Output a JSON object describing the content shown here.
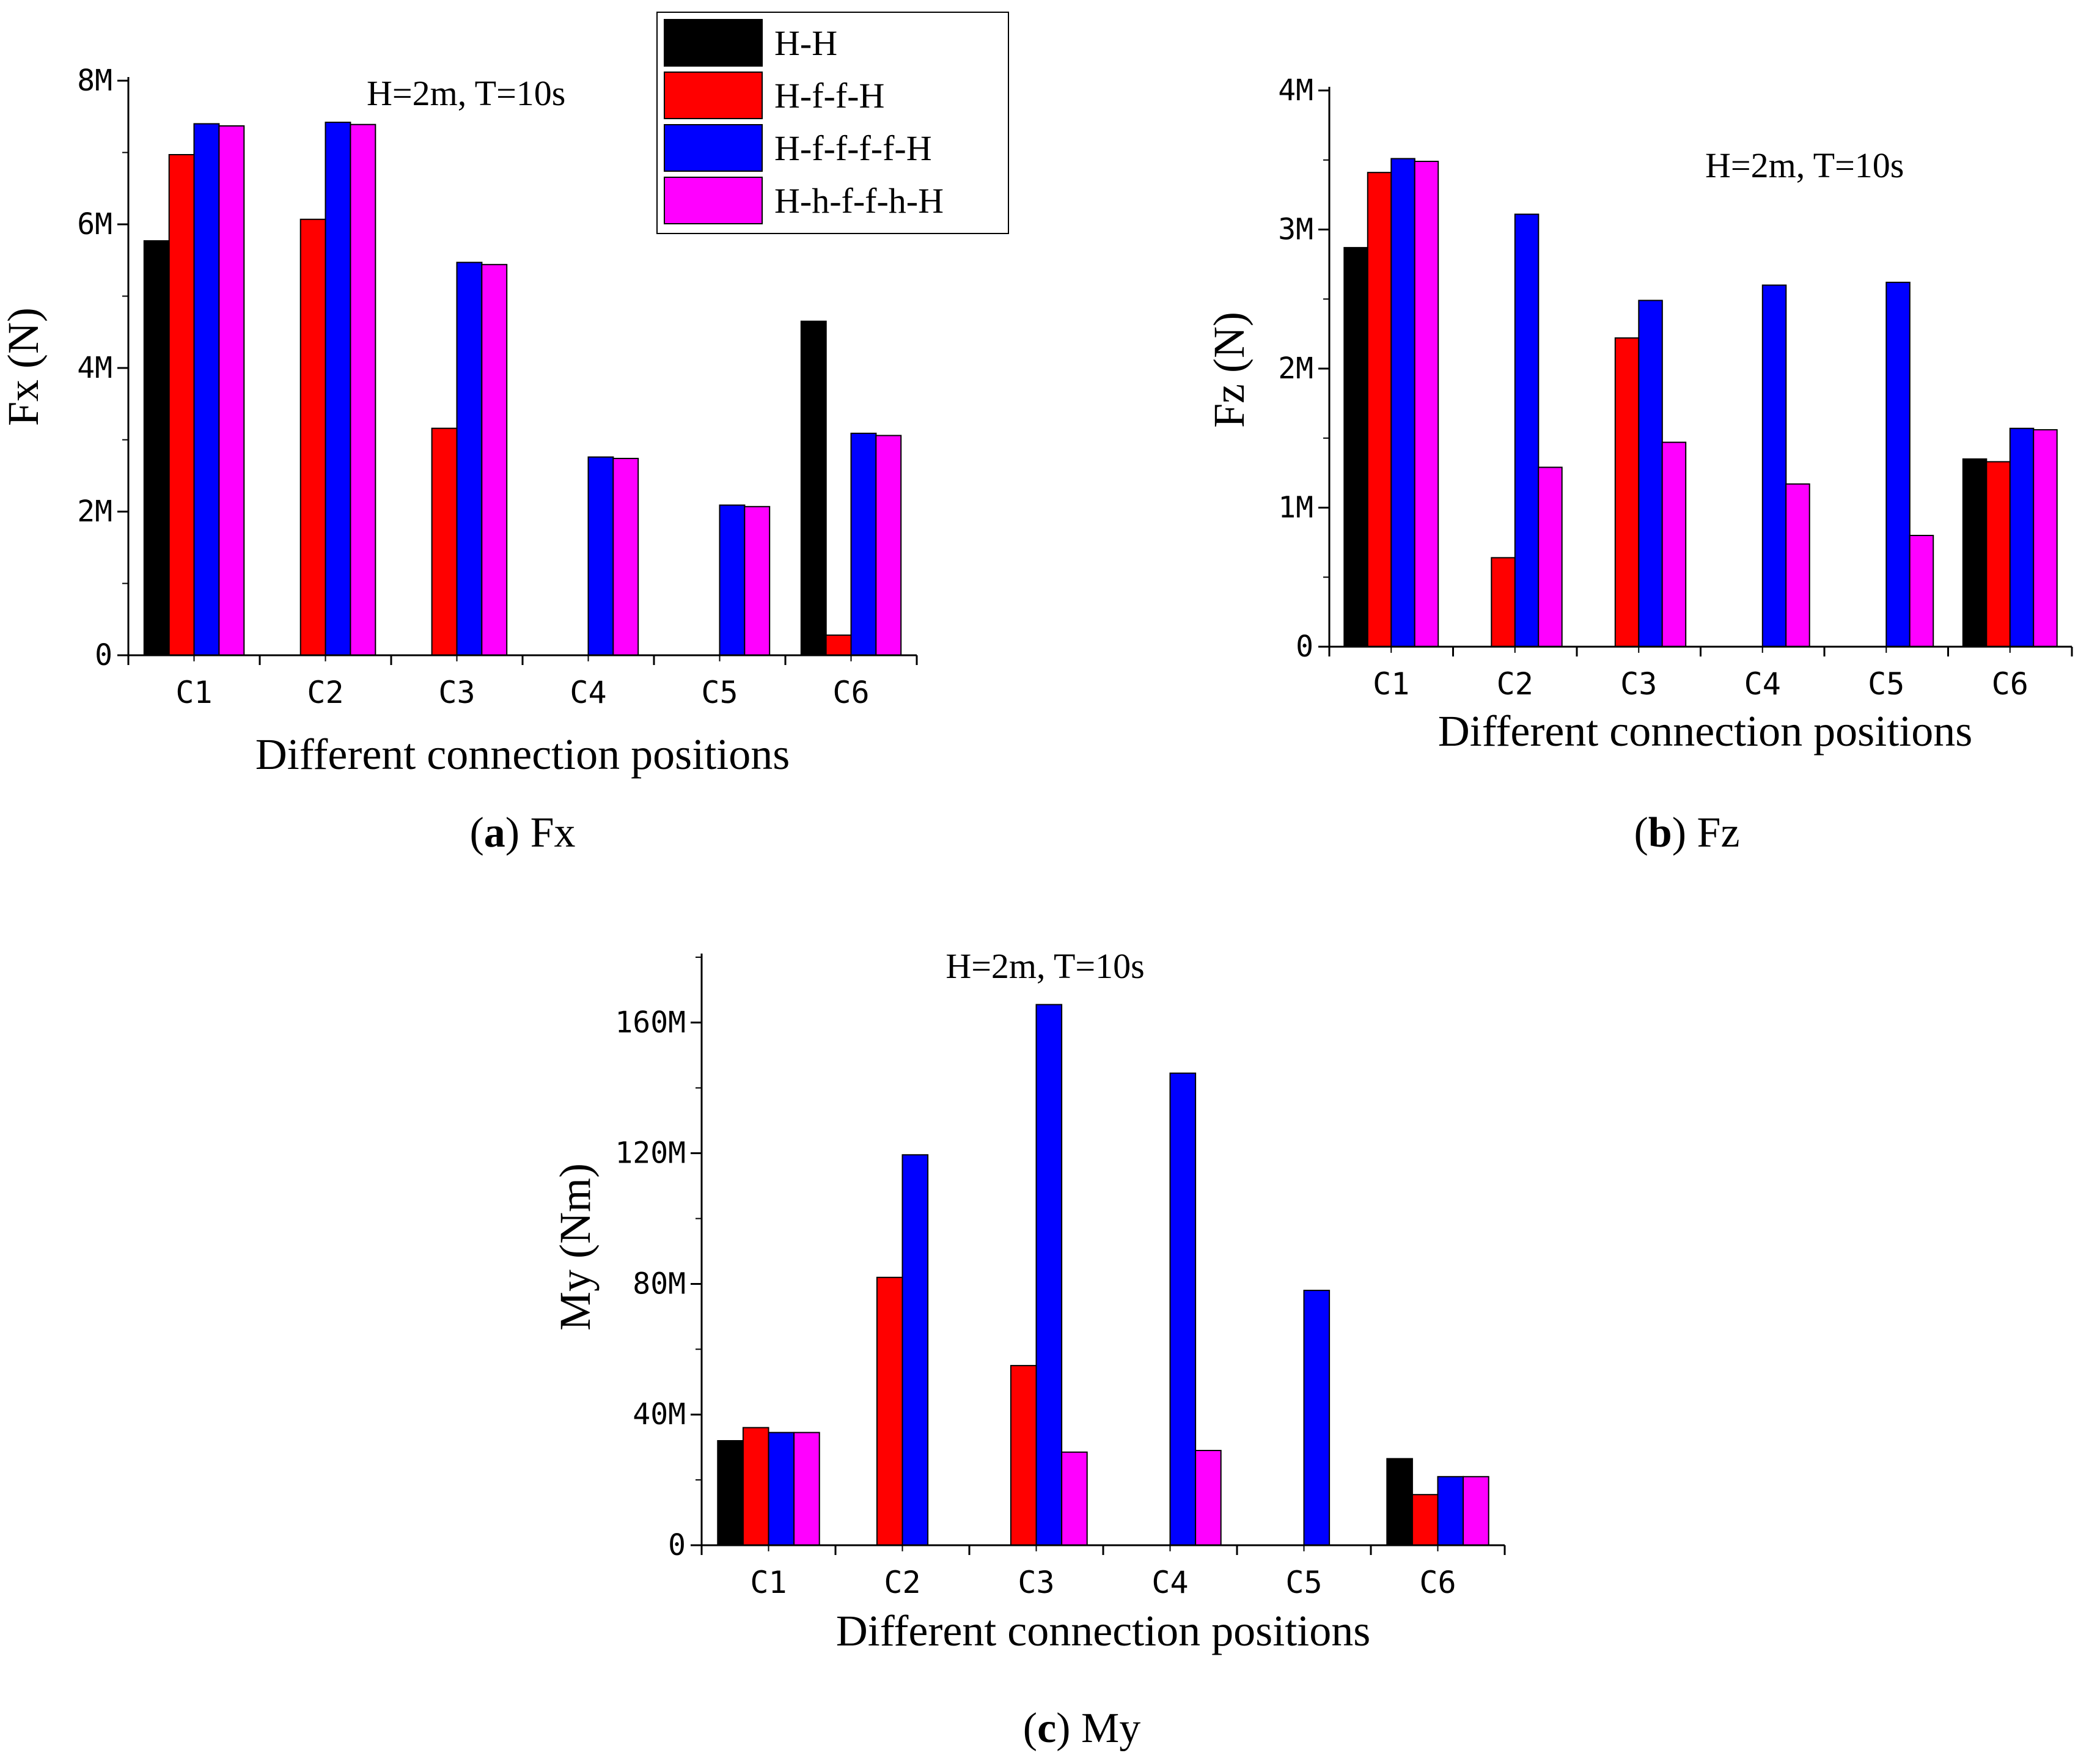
{
  "colors": {
    "H-H": "#000000",
    "H-f-f-H": "#ff0000",
    "H-f-f-f-f-H": "#0000ff",
    "H-h-f-f-h-H": "#ff00ff"
  },
  "legend": {
    "items": [
      "H-H",
      "H-f-f-H",
      "H-f-f-f-f-H",
      "H-h-f-f-h-H"
    ]
  },
  "chart_data": [
    {
      "type": "bar",
      "id": "a",
      "title": "H=2m, T=10s",
      "caption_letter": "a",
      "caption_text": "Fx",
      "xlabel": "Different connection positions",
      "ylabel": "Fx (N)",
      "categories": [
        "C1",
        "C2",
        "C3",
        "C4",
        "C5",
        "C6"
      ],
      "ylim": [
        0,
        8000000
      ],
      "yticks": [
        0,
        2000000,
        4000000,
        6000000,
        8000000
      ],
      "ytick_labels": [
        "0",
        "2M",
        "4M",
        "6M",
        "8M"
      ],
      "series": [
        {
          "name": "H-H",
          "values": [
            5770000,
            0,
            0,
            0,
            0,
            4650000
          ]
        },
        {
          "name": "H-f-f-H",
          "values": [
            6970000,
            6070000,
            3160000,
            0,
            0,
            280000
          ]
        },
        {
          "name": "H-f-f-f-f-H",
          "values": [
            7400000,
            7420000,
            5470000,
            2760000,
            2090000,
            3090000
          ]
        },
        {
          "name": "H-h-f-f-h-H",
          "values": [
            7370000,
            7390000,
            5440000,
            2740000,
            2070000,
            3060000
          ]
        }
      ]
    },
    {
      "type": "bar",
      "id": "b",
      "title": "H=2m, T=10s",
      "caption_letter": "b",
      "caption_text": "Fz",
      "xlabel": "Different connection positions",
      "ylabel": "Fz (N)",
      "categories": [
        "C1",
        "C2",
        "C3",
        "C4",
        "C5",
        "C6"
      ],
      "ylim": [
        0,
        4000000
      ],
      "yticks": [
        0,
        1000000,
        2000000,
        3000000,
        4000000
      ],
      "ytick_labels": [
        "0",
        "1M",
        "2M",
        "3M",
        "4M"
      ],
      "series": [
        {
          "name": "H-H",
          "values": [
            2870000,
            0,
            0,
            0,
            0,
            1350000
          ]
        },
        {
          "name": "H-f-f-H",
          "values": [
            3410000,
            640000,
            2220000,
            0,
            0,
            1330000
          ]
        },
        {
          "name": "H-f-f-f-f-H",
          "values": [
            3510000,
            3110000,
            2490000,
            2600000,
            2620000,
            1570000
          ]
        },
        {
          "name": "H-h-f-f-h-H",
          "values": [
            3490000,
            1290000,
            1470000,
            1170000,
            800000,
            1560000
          ]
        }
      ]
    },
    {
      "type": "bar",
      "id": "c",
      "title": "H=2m, T=10s",
      "caption_letter": "c",
      "caption_text": "My",
      "xlabel": "Different connection positions",
      "ylabel": "My (Nm)",
      "categories": [
        "C1",
        "C2",
        "C3",
        "C4",
        "C5",
        "C6"
      ],
      "ylim": [
        0,
        180000000
      ],
      "yticks": [
        0,
        40000000,
        80000000,
        120000000,
        160000000
      ],
      "ytick_labels": [
        "0",
        "40M",
        "80M",
        "120M",
        "160M"
      ],
      "series": [
        {
          "name": "H-H",
          "values": [
            32000000,
            0,
            0,
            0,
            0,
            26500000
          ]
        },
        {
          "name": "H-f-f-H",
          "values": [
            36000000,
            82000000,
            55000000,
            0,
            0,
            15500000
          ]
        },
        {
          "name": "H-f-f-f-f-H",
          "values": [
            34500000,
            119500000,
            165500000,
            144500000,
            78000000,
            21000000
          ]
        },
        {
          "name": "H-h-f-f-h-H",
          "values": [
            34500000,
            0,
            28500000,
            29000000,
            0,
            21000000
          ]
        }
      ]
    }
  ]
}
